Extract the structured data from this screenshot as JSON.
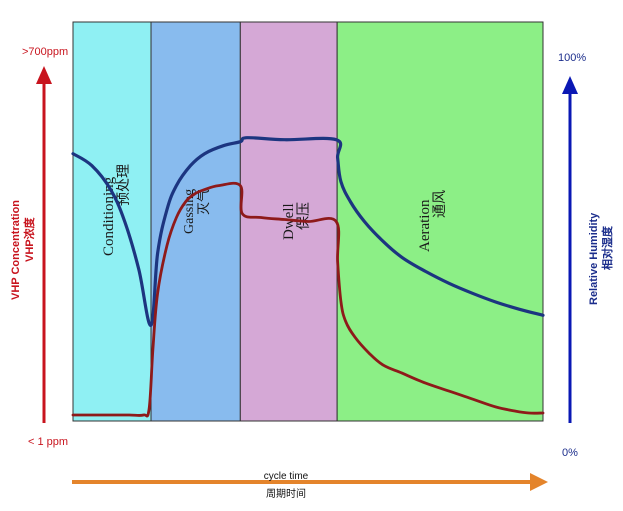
{
  "colors": {
    "conditioning": "#8ff0f3",
    "gassing": "#88bbee",
    "dwell": "#d5a8d6",
    "aeration": "#8cef86",
    "humidity_line": "#1c3580",
    "vhp_line": "#8e1a1a",
    "left_axis": "#c8141e",
    "right_axis": "#0a18b4",
    "time_arrow": "#e4842b"
  },
  "chart_data": {
    "type": "line",
    "title": "",
    "left_axis": {
      "label_en": "VHP Concentration",
      "label_zh": "VHP浓度",
      "top_label": ">700ppm",
      "bottom_label": "< 1 ppm"
    },
    "right_axis": {
      "label_en": "Relative Humidity",
      "label_zh": "相对湿度",
      "top_label": "100%",
      "bottom_label": "0%"
    },
    "x_axis": {
      "label_en": "cycle time",
      "label_zh": "周期时间",
      "range": [
        0,
        100
      ]
    },
    "y_range": [
      0,
      100
    ],
    "phases": [
      {
        "name_en": "Conditioning",
        "name_zh": "预处理",
        "start": 0,
        "end": 16.6
      },
      {
        "name_en": "Gassing",
        "name_zh": "灭气",
        "start": 16.6,
        "end": 35.6
      },
      {
        "name_en": "Dwell",
        "name_zh": "保压",
        "start": 35.6,
        "end": 56.2
      },
      {
        "name_en": "Aeration",
        "name_zh": "通风",
        "start": 56.2,
        "end": 100
      }
    ],
    "series": [
      {
        "id": "humidity",
        "x": [
          0,
          4,
          8,
          11,
          14,
          16.6,
          18,
          20,
          22,
          25,
          28,
          32,
          35.6,
          37,
          45,
          56,
          56.3,
          57,
          59,
          62,
          66,
          70,
          75,
          80,
          85,
          90,
          95,
          100
        ],
        "values": [
          67,
          64,
          58,
          50,
          38,
          24,
          42,
          53,
          59,
          64,
          67,
          69,
          70,
          71,
          70.5,
          70.5,
          66,
          60,
          55,
          50,
          45,
          41,
          37.5,
          34.5,
          32,
          29.8,
          28,
          26.5
        ]
      },
      {
        "id": "vhp",
        "x": [
          0,
          4,
          8,
          12,
          15,
          16.2,
          17,
          18,
          20,
          22,
          24,
          26,
          28,
          31,
          35.6,
          36,
          40,
          45,
          50,
          56,
          56.3,
          57,
          58,
          60,
          63,
          66,
          70,
          75,
          80,
          85,
          90,
          94,
          97,
          100
        ],
        "values": [
          1.5,
          1.5,
          1.5,
          1.5,
          1.5,
          3,
          18,
          32,
          44,
          51,
          55,
          57,
          58,
          59,
          59,
          52,
          51,
          50.5,
          50,
          50,
          40,
          30,
          25,
          21,
          17,
          14,
          12,
          9.5,
          7.5,
          5.5,
          3.5,
          2.5,
          2,
          2
        ]
      }
    ]
  }
}
